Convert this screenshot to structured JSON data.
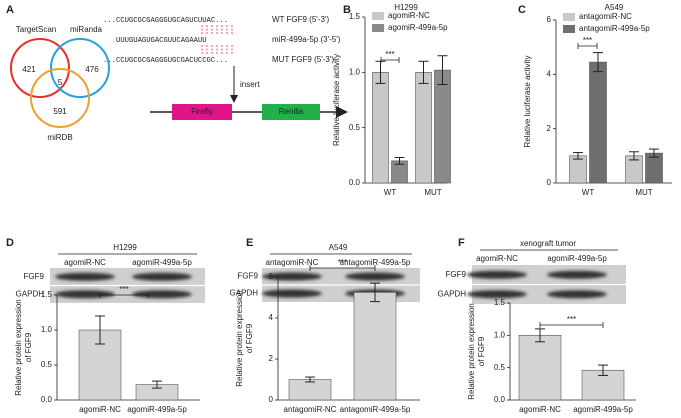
{
  "letters": [
    "A",
    "B",
    "C",
    "D",
    "E",
    "F"
  ],
  "venn": {
    "sets": [
      "TargetScan",
      "miRanda",
      "miRDB"
    ],
    "counts": [
      421,
      476,
      591,
      5
    ]
  },
  "sequence": {
    "rows": [
      {
        "seq": "...CCUGCGCGAGGGUGCAGUCUUAC...",
        "label": "WT FGF9 (5'-3')"
      },
      {
        "seq": "UUUGUAGUGACGUUCAGAAUU",
        "label": "miR-499a-5p (3'-5')"
      },
      {
        "seq": "...CCUGCGCGAGGGUGCGACUCCGC...",
        "label": "MUT FGF9 (5'-3')"
      }
    ],
    "insert": "insert",
    "genes": [
      "Firefly",
      "Renilla"
    ]
  },
  "blots": [
    {
      "title": "H1299",
      "columns": [
        "agomiR-NC",
        "agomiR-499a-5p"
      ],
      "rows": [
        "FGF9",
        "GAPDH"
      ]
    },
    {
      "title": "A549",
      "columns": [
        "antagomiR-NC",
        "antagomiR-499a-5p"
      ],
      "rows": [
        "FGF9",
        "GAPDH"
      ]
    },
    {
      "title": "xenograft tumor",
      "columns": [
        "agomiR-NC",
        "agomiR-499a-5p"
      ],
      "rows": [
        "FGF9",
        "GAPDH"
      ]
    }
  ],
  "chart_data": [
    {
      "type": "bar",
      "title": "H1299",
      "ylabel": [
        "Relative luciferase activity"
      ],
      "categories": [
        "WT",
        "MUT"
      ],
      "series": [
        {
          "name": "agomiR-NC",
          "color": "#c8c8c8",
          "values": [
            1.0,
            1.0
          ],
          "errors": [
            0.1,
            0.1
          ]
        },
        {
          "name": "agomiR-499a-5p",
          "color": "#8a8a8a",
          "values": [
            0.2,
            1.02
          ],
          "errors": [
            0.03,
            0.13
          ]
        }
      ],
      "ylim": [
        0,
        1.5
      ],
      "yticks": [
        {
          "value": 0,
          "label": "0.0"
        },
        0.5,
        {
          "value": 1,
          "label": "1.0"
        },
        1.5
      ],
      "significance": "***"
    },
    {
      "type": "bar",
      "title": "A549",
      "ylabel": [
        "Relative luciferase activity"
      ],
      "categories": [
        "WT",
        "MUT"
      ],
      "series": [
        {
          "name": "antagomiR-NC",
          "color": "#c8c8c8",
          "values": [
            1.0,
            1.0
          ],
          "errors": [
            0.12,
            0.15
          ]
        },
        {
          "name": "antagomiR-499a-5p",
          "color": "#6e6e6e",
          "values": [
            4.45,
            1.1
          ],
          "errors": [
            0.35,
            0.15
          ]
        }
      ],
      "ylim": [
        0,
        6
      ],
      "yticks": [
        0,
        2,
        4,
        6
      ],
      "significance": "***"
    },
    {
      "type": "bar",
      "ylabel": [
        "Relative protein expression",
        "of FGF9"
      ],
      "categories": [
        "agomiR-NC",
        "agomiR-499a-5p"
      ],
      "values": [
        1.0,
        0.22
      ],
      "errors": [
        0.2,
        0.05
      ],
      "color": "#d4d4d4",
      "ylim": [
        0,
        1.5
      ],
      "yticks": [
        {
          "value": 0,
          "label": "0.0"
        },
        0.5,
        {
          "value": 1,
          "label": "1.0"
        },
        1.5
      ],
      "significance": "***"
    },
    {
      "type": "bar",
      "ylabel": [
        "Relative protein expression",
        "of FGF9"
      ],
      "categories": [
        "antagomiR-NC",
        "antagomiR-499a-5p"
      ],
      "values": [
        1.0,
        5.25
      ],
      "errors": [
        0.12,
        0.45
      ],
      "color": "#d4d4d4",
      "ylim": [
        0,
        6
      ],
      "yticks": [
        0,
        2,
        4,
        6
      ],
      "significance": "***"
    },
    {
      "type": "bar",
      "ylabel": [
        "Relative protein expression",
        "of FGF9"
      ],
      "categories": [
        "agomiR-NC",
        "agomiR-499a-5p"
      ],
      "values": [
        1.0,
        0.46
      ],
      "errors": [
        0.1,
        0.08
      ],
      "color": "#d4d4d4",
      "ylim": [
        0,
        1.5
      ],
      "yticks": [
        {
          "value": 0,
          "label": "0.0"
        },
        0.5,
        {
          "value": 1,
          "label": "1.0"
        },
        1.5
      ],
      "significance": "***"
    }
  ]
}
